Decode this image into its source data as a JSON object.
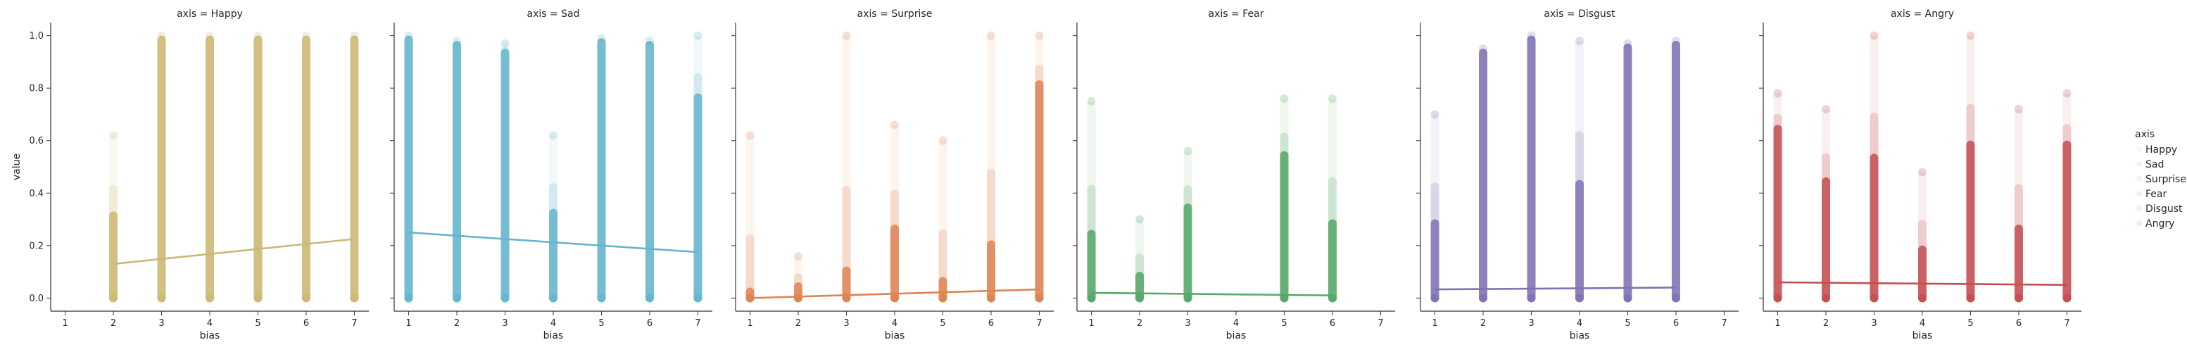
{
  "chart_data": {
    "type": "scatter",
    "facet_title_prefix": "axis = ",
    "xlabel": "bias",
    "ylabel": "value",
    "xlim": [
      0.7,
      7.3
    ],
    "ylim": [
      -0.05,
      1.05
    ],
    "xticks": [
      1,
      2,
      3,
      4,
      5,
      6,
      7
    ],
    "yticks": [
      0.0,
      0.2,
      0.4,
      0.6,
      0.8,
      1.0
    ],
    "ytick_labels": [
      "0.0",
      "0.2",
      "0.4",
      "0.6",
      "0.8",
      "1.0"
    ],
    "legend": {
      "title": "axis",
      "placement": "right",
      "entries": [
        "Happy",
        "Sad",
        "Surprise",
        "Fear",
        "Disgust",
        "Angry"
      ]
    },
    "panels": [
      {
        "name": "Happy",
        "color": "#ccb974",
        "columns": [
          {
            "x": 2,
            "dense_max": 0.33,
            "max": 0.62
          },
          {
            "x": 3,
            "dense_max": 1.0,
            "max": 1.0
          },
          {
            "x": 4,
            "dense_max": 1.0,
            "max": 1.0
          },
          {
            "x": 5,
            "dense_max": 1.0,
            "max": 1.0
          },
          {
            "x": 6,
            "dense_max": 1.0,
            "max": 1.0
          },
          {
            "x": 7,
            "dense_max": 1.0,
            "max": 1.0
          }
        ],
        "regression": {
          "x": [
            2,
            7
          ],
          "y": [
            0.13,
            0.225
          ]
        }
      },
      {
        "name": "Sad",
        "color": "#64b5cd",
        "columns": [
          {
            "x": 1,
            "dense_max": 1.0,
            "max": 1.0
          },
          {
            "x": 2,
            "dense_max": 0.98,
            "max": 0.98
          },
          {
            "x": 3,
            "dense_max": 0.95,
            "max": 0.97
          },
          {
            "x": 4,
            "dense_max": 0.34,
            "max": 0.62
          },
          {
            "x": 5,
            "dense_max": 0.99,
            "max": 0.99
          },
          {
            "x": 6,
            "dense_max": 0.98,
            "max": 0.98
          },
          {
            "x": 7,
            "dense_max": 0.78,
            "max": 1.0
          }
        ],
        "regression": {
          "x": [
            1,
            7
          ],
          "y": [
            0.25,
            0.175
          ]
        }
      },
      {
        "name": "Surprise",
        "color": "#dd8452",
        "columns": [
          {
            "x": 1,
            "dense_max": 0.04,
            "max": 0.62
          },
          {
            "x": 2,
            "dense_max": 0.06,
            "max": 0.16
          },
          {
            "x": 3,
            "dense_max": 0.12,
            "max": 1.0
          },
          {
            "x": 4,
            "dense_max": 0.28,
            "max": 0.66
          },
          {
            "x": 5,
            "dense_max": 0.08,
            "max": 0.6
          },
          {
            "x": 6,
            "dense_max": 0.22,
            "max": 1.0
          },
          {
            "x": 7,
            "dense_max": 0.83,
            "max": 1.0
          }
        ],
        "regression": {
          "x": [
            1,
            7
          ],
          "y": [
            0.0,
            0.033
          ]
        }
      },
      {
        "name": "Fear",
        "color": "#55a868",
        "columns": [
          {
            "x": 1,
            "dense_max": 0.26,
            "max": 0.75
          },
          {
            "x": 2,
            "dense_max": 0.1,
            "max": 0.3
          },
          {
            "x": 3,
            "dense_max": 0.36,
            "max": 0.56
          },
          {
            "x": 5,
            "dense_max": 0.56,
            "max": 0.76
          },
          {
            "x": 6,
            "dense_max": 0.3,
            "max": 0.76
          }
        ],
        "regression": {
          "x": [
            1,
            6
          ],
          "y": [
            0.02,
            0.01
          ]
        }
      },
      {
        "name": "Disgust",
        "color": "#8172b3",
        "columns": [
          {
            "x": 1,
            "dense_max": 0.3,
            "max": 0.7
          },
          {
            "x": 2,
            "dense_max": 0.95,
            "max": 0.95
          },
          {
            "x": 3,
            "dense_max": 1.0,
            "max": 1.0
          },
          {
            "x": 4,
            "dense_max": 0.45,
            "max": 0.98
          },
          {
            "x": 5,
            "dense_max": 0.97,
            "max": 0.97
          },
          {
            "x": 6,
            "dense_max": 0.98,
            "max": 0.98
          }
        ],
        "regression": {
          "x": [
            1,
            6
          ],
          "y": [
            0.033,
            0.04
          ]
        }
      },
      {
        "name": "Angry",
        "color": "#c44e52",
        "columns": [
          {
            "x": 1,
            "dense_max": 0.66,
            "max": 0.78
          },
          {
            "x": 2,
            "dense_max": 0.46,
            "max": 0.72
          },
          {
            "x": 3,
            "dense_max": 0.55,
            "max": 1.0
          },
          {
            "x": 4,
            "dense_max": 0.2,
            "max": 0.48
          },
          {
            "x": 5,
            "dense_max": 0.6,
            "max": 1.0
          },
          {
            "x": 6,
            "dense_max": 0.28,
            "max": 0.72
          },
          {
            "x": 7,
            "dense_max": 0.6,
            "max": 0.78
          }
        ],
        "regression": {
          "x": [
            1,
            7
          ],
          "y": [
            0.06,
            0.05
          ]
        }
      }
    ]
  }
}
